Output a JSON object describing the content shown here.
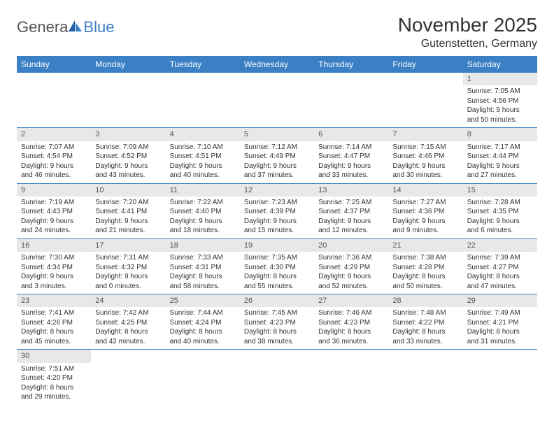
{
  "logo": {
    "part1": "Genera",
    "part2": "Blue"
  },
  "title": "November 2025",
  "location": "Gutenstetten, Germany",
  "colors": {
    "header_bg": "#3b7fc4",
    "header_text": "#ffffff",
    "logo_gray": "#555555",
    "logo_blue": "#3b7fc4",
    "daynum_bg": "#e8e8e8",
    "border": "#3b7fc4",
    "body_text": "#333333",
    "page_bg": "#ffffff"
  },
  "fonts": {
    "title_size": 28,
    "location_size": 16,
    "weekday_size": 12,
    "daynum_size": 11,
    "dayinfo_size": 10
  },
  "weekdays": [
    "Sunday",
    "Monday",
    "Tuesday",
    "Wednesday",
    "Thursday",
    "Friday",
    "Saturday"
  ],
  "weeks": [
    [
      null,
      null,
      null,
      null,
      null,
      null,
      {
        "n": "1",
        "sunrise": "Sunrise: 7:05 AM",
        "sunset": "Sunset: 4:56 PM",
        "day1": "Daylight: 9 hours",
        "day2": "and 50 minutes."
      }
    ],
    [
      {
        "n": "2",
        "sunrise": "Sunrise: 7:07 AM",
        "sunset": "Sunset: 4:54 PM",
        "day1": "Daylight: 9 hours",
        "day2": "and 46 minutes."
      },
      {
        "n": "3",
        "sunrise": "Sunrise: 7:09 AM",
        "sunset": "Sunset: 4:52 PM",
        "day1": "Daylight: 9 hours",
        "day2": "and 43 minutes."
      },
      {
        "n": "4",
        "sunrise": "Sunrise: 7:10 AM",
        "sunset": "Sunset: 4:51 PM",
        "day1": "Daylight: 9 hours",
        "day2": "and 40 minutes."
      },
      {
        "n": "5",
        "sunrise": "Sunrise: 7:12 AM",
        "sunset": "Sunset: 4:49 PM",
        "day1": "Daylight: 9 hours",
        "day2": "and 37 minutes."
      },
      {
        "n": "6",
        "sunrise": "Sunrise: 7:14 AM",
        "sunset": "Sunset: 4:47 PM",
        "day1": "Daylight: 9 hours",
        "day2": "and 33 minutes."
      },
      {
        "n": "7",
        "sunrise": "Sunrise: 7:15 AM",
        "sunset": "Sunset: 4:46 PM",
        "day1": "Daylight: 9 hours",
        "day2": "and 30 minutes."
      },
      {
        "n": "8",
        "sunrise": "Sunrise: 7:17 AM",
        "sunset": "Sunset: 4:44 PM",
        "day1": "Daylight: 9 hours",
        "day2": "and 27 minutes."
      }
    ],
    [
      {
        "n": "9",
        "sunrise": "Sunrise: 7:19 AM",
        "sunset": "Sunset: 4:43 PM",
        "day1": "Daylight: 9 hours",
        "day2": "and 24 minutes."
      },
      {
        "n": "10",
        "sunrise": "Sunrise: 7:20 AM",
        "sunset": "Sunset: 4:41 PM",
        "day1": "Daylight: 9 hours",
        "day2": "and 21 minutes."
      },
      {
        "n": "11",
        "sunrise": "Sunrise: 7:22 AM",
        "sunset": "Sunset: 4:40 PM",
        "day1": "Daylight: 9 hours",
        "day2": "and 18 minutes."
      },
      {
        "n": "12",
        "sunrise": "Sunrise: 7:23 AM",
        "sunset": "Sunset: 4:39 PM",
        "day1": "Daylight: 9 hours",
        "day2": "and 15 minutes."
      },
      {
        "n": "13",
        "sunrise": "Sunrise: 7:25 AM",
        "sunset": "Sunset: 4:37 PM",
        "day1": "Daylight: 9 hours",
        "day2": "and 12 minutes."
      },
      {
        "n": "14",
        "sunrise": "Sunrise: 7:27 AM",
        "sunset": "Sunset: 4:36 PM",
        "day1": "Daylight: 9 hours",
        "day2": "and 9 minutes."
      },
      {
        "n": "15",
        "sunrise": "Sunrise: 7:28 AM",
        "sunset": "Sunset: 4:35 PM",
        "day1": "Daylight: 9 hours",
        "day2": "and 6 minutes."
      }
    ],
    [
      {
        "n": "16",
        "sunrise": "Sunrise: 7:30 AM",
        "sunset": "Sunset: 4:34 PM",
        "day1": "Daylight: 9 hours",
        "day2": "and 3 minutes."
      },
      {
        "n": "17",
        "sunrise": "Sunrise: 7:31 AM",
        "sunset": "Sunset: 4:32 PM",
        "day1": "Daylight: 9 hours",
        "day2": "and 0 minutes."
      },
      {
        "n": "18",
        "sunrise": "Sunrise: 7:33 AM",
        "sunset": "Sunset: 4:31 PM",
        "day1": "Daylight: 8 hours",
        "day2": "and 58 minutes."
      },
      {
        "n": "19",
        "sunrise": "Sunrise: 7:35 AM",
        "sunset": "Sunset: 4:30 PM",
        "day1": "Daylight: 8 hours",
        "day2": "and 55 minutes."
      },
      {
        "n": "20",
        "sunrise": "Sunrise: 7:36 AM",
        "sunset": "Sunset: 4:29 PM",
        "day1": "Daylight: 8 hours",
        "day2": "and 52 minutes."
      },
      {
        "n": "21",
        "sunrise": "Sunrise: 7:38 AM",
        "sunset": "Sunset: 4:28 PM",
        "day1": "Daylight: 8 hours",
        "day2": "and 50 minutes."
      },
      {
        "n": "22",
        "sunrise": "Sunrise: 7:39 AM",
        "sunset": "Sunset: 4:27 PM",
        "day1": "Daylight: 8 hours",
        "day2": "and 47 minutes."
      }
    ],
    [
      {
        "n": "23",
        "sunrise": "Sunrise: 7:41 AM",
        "sunset": "Sunset: 4:26 PM",
        "day1": "Daylight: 8 hours",
        "day2": "and 45 minutes."
      },
      {
        "n": "24",
        "sunrise": "Sunrise: 7:42 AM",
        "sunset": "Sunset: 4:25 PM",
        "day1": "Daylight: 8 hours",
        "day2": "and 42 minutes."
      },
      {
        "n": "25",
        "sunrise": "Sunrise: 7:44 AM",
        "sunset": "Sunset: 4:24 PM",
        "day1": "Daylight: 8 hours",
        "day2": "and 40 minutes."
      },
      {
        "n": "26",
        "sunrise": "Sunrise: 7:45 AM",
        "sunset": "Sunset: 4:23 PM",
        "day1": "Daylight: 8 hours",
        "day2": "and 38 minutes."
      },
      {
        "n": "27",
        "sunrise": "Sunrise: 7:46 AM",
        "sunset": "Sunset: 4:23 PM",
        "day1": "Daylight: 8 hours",
        "day2": "and 36 minutes."
      },
      {
        "n": "28",
        "sunrise": "Sunrise: 7:48 AM",
        "sunset": "Sunset: 4:22 PM",
        "day1": "Daylight: 8 hours",
        "day2": "and 33 minutes."
      },
      {
        "n": "29",
        "sunrise": "Sunrise: 7:49 AM",
        "sunset": "Sunset: 4:21 PM",
        "day1": "Daylight: 8 hours",
        "day2": "and 31 minutes."
      }
    ],
    [
      {
        "n": "30",
        "sunrise": "Sunrise: 7:51 AM",
        "sunset": "Sunset: 4:20 PM",
        "day1": "Daylight: 8 hours",
        "day2": "and 29 minutes."
      },
      null,
      null,
      null,
      null,
      null,
      null
    ]
  ]
}
